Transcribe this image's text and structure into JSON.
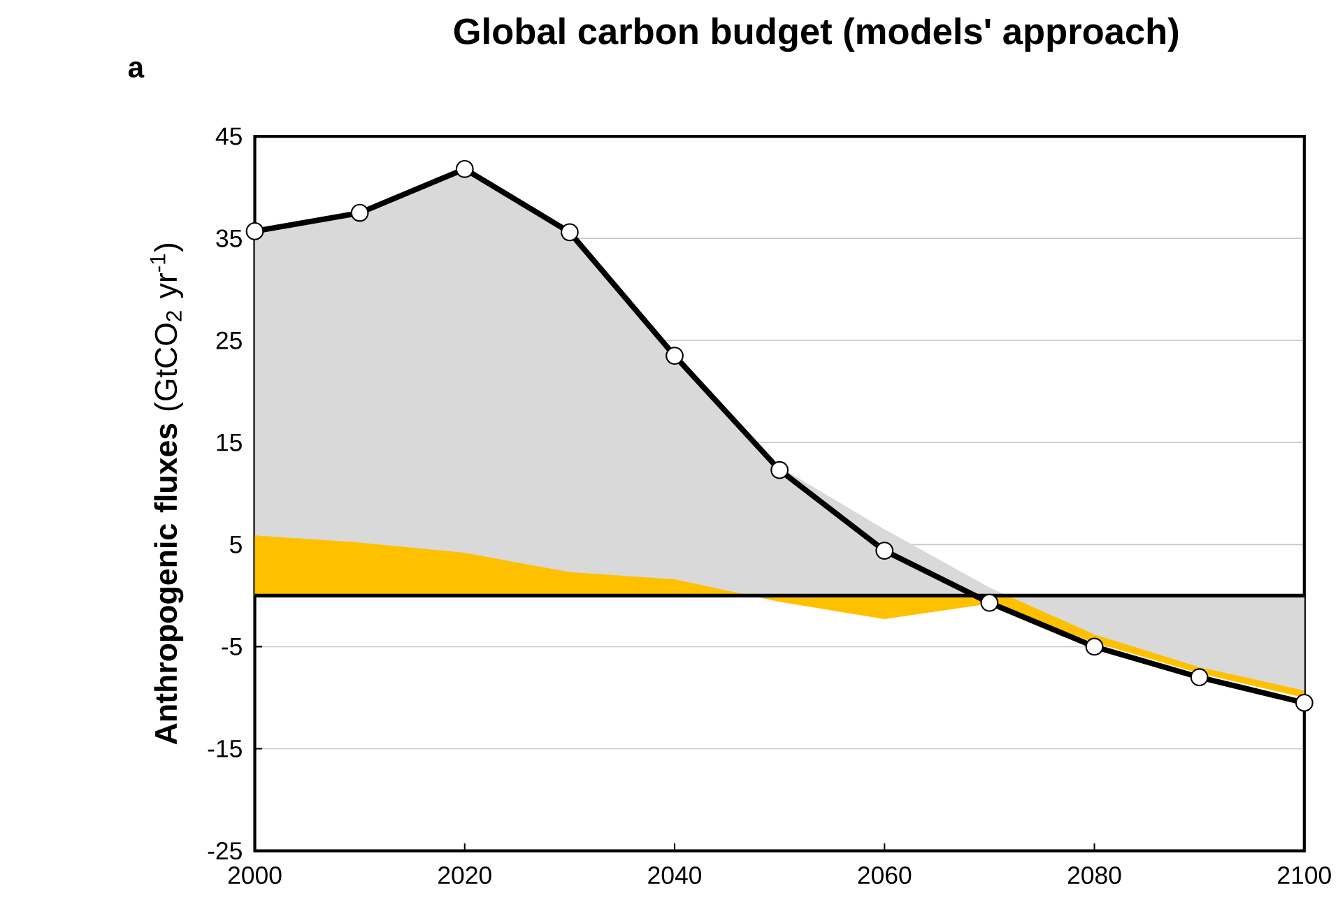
{
  "chart_data": {
    "type": "area",
    "title": "Global carbon budget (models' approach)",
    "ylabel": "**Anthropogenic fluxes** (GtCO$_{2}$ yr$^{-1}$)",
    "annotations": [
      "a"
    ],
    "x": [
      2000,
      2010,
      2020,
      2030,
      2040,
      2050,
      2060,
      2070,
      2080,
      2090,
      2100
    ],
    "series": [
      {
        "color": "#ffc000",
        "x": [
          2070,
          2080,
          2090,
          2100
        ],
        "values": [
          -0.8,
          -4.6,
          -7.6,
          -10.0
        ]
      },
      {
        "color": "#d9d9d9",
        "values": [
          35.7,
          37.5,
          41.8,
          35.6,
          23.6,
          12.6,
          6.5,
          0.8,
          -3.8,
          -7.0,
          -9.3
        ]
      },
      {
        "color": "#ffc000",
        "x": [
          2000,
          2010,
          2020,
          2030,
          2040,
          2050,
          2060,
          2070
        ],
        "values": [
          5.9,
          5.2,
          4.2,
          2.3,
          1.6,
          -0.6,
          -2.3,
          -0.8
        ]
      },
      {
        "type": "line",
        "color": "#000000",
        "marker": "circle",
        "values": [
          35.7,
          37.5,
          41.8,
          35.6,
          23.5,
          12.3,
          4.4,
          -0.7,
          -5.0,
          -8.0,
          -10.5
        ]
      }
    ],
    "xlim": [
      2000,
      2100
    ],
    "ylim": [
      -25,
      45
    ],
    "xticks": [
      2000,
      2020,
      2040,
      2060,
      2080,
      2100
    ],
    "yticks": [
      -25,
      -15,
      -5,
      5,
      15,
      25,
      35,
      45
    ],
    "grid": "y",
    "ref_lines": [
      {
        "axis": "y",
        "value": 0,
        "color": "#000000"
      }
    ]
  }
}
